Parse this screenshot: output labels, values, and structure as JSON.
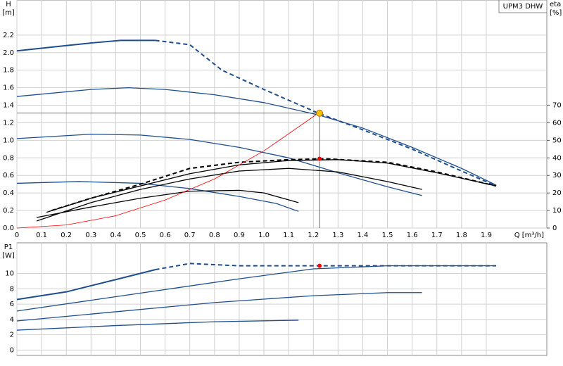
{
  "chart_data": [
    {
      "type": "line",
      "title": "UPM3 DHW",
      "ylabel": "H",
      "ylabel_unit": "[m]",
      "y2label": "eta",
      "y2label_unit": "[%]",
      "xlabel": "Q [m³/h]",
      "xlim": [
        0,
        2.145
      ],
      "ylim": [
        0,
        2.6
      ],
      "y2lim": [
        0,
        130
      ],
      "grid": true,
      "xticks": [
        0,
        0.1,
        0.2,
        0.3,
        0.4,
        0.5,
        0.6,
        0.7,
        0.8,
        0.9,
        {
          "value": 1,
          "label": "1.0"
        },
        1.1,
        1.2,
        1.3,
        1.4,
        1.5,
        1.6,
        1.7,
        1.8,
        1.9
      ],
      "yticks": [
        {
          "value": 0,
          "label": "0.0"
        },
        0.2,
        0.4,
        0.6,
        0.8,
        {
          "value": 1,
          "label": "1.0"
        },
        1.2,
        1.4,
        1.6,
        1.8,
        {
          "value": 2,
          "label": "2.0"
        },
        2.2
      ],
      "y2ticks": [
        0,
        10,
        20,
        30,
        40,
        50,
        60,
        70
      ],
      "series": [
        {
          "color": "#1f4e8c",
          "width": 2,
          "x": [
            0,
            0.1,
            0.2,
            0.3,
            0.42,
            0.56
          ],
          "values": [
            2.02,
            2.05,
            2.08,
            2.11,
            2.14,
            2.14
          ]
        },
        {
          "color": "#1f4e8c",
          "width": 2,
          "dash": true,
          "x": [
            0.56,
            0.7,
            0.83,
            1.0,
            1.22,
            1.4,
            1.6,
            1.8,
            1.94
          ],
          "values": [
            2.14,
            2.09,
            1.8,
            1.58,
            1.31,
            1.12,
            0.9,
            0.65,
            0.48
          ]
        },
        {
          "color": "#1f4e8c",
          "width": 1.3,
          "x": [
            0,
            0.3,
            0.45,
            0.6,
            0.8,
            1.0,
            1.22,
            1.4,
            1.6,
            1.8,
            1.94
          ],
          "values": [
            1.5,
            1.58,
            1.6,
            1.58,
            1.52,
            1.43,
            1.29,
            1.14,
            0.92,
            0.68,
            0.49
          ]
        },
        {
          "color": "#1f4e8c",
          "width": 1.3,
          "x": [
            0,
            0.3,
            0.5,
            0.7,
            0.9,
            1.1,
            1.3,
            1.5,
            1.64
          ],
          "values": [
            1.02,
            1.07,
            1.06,
            1.01,
            0.92,
            0.8,
            0.63,
            0.47,
            0.37
          ]
        },
        {
          "color": "#1f4e8c",
          "width": 1.3,
          "x": [
            0,
            0.25,
            0.5,
            0.7,
            0.9,
            1.05,
            1.14
          ],
          "values": [
            0.51,
            0.53,
            0.51,
            0.45,
            0.36,
            0.28,
            0.19
          ]
        },
        {
          "color": "#000000",
          "width": 2,
          "dash": true,
          "axis": "y2",
          "x": [
            0.14,
            0.3,
            0.5,
            0.7,
            0.9,
            1.1,
            1.25,
            1.5,
            1.7,
            1.94
          ],
          "values": [
            10,
            17,
            25,
            34,
            37.5,
            39,
            39.5,
            37.5,
            32,
            24
          ]
        },
        {
          "color": "#000000",
          "width": 1.3,
          "axis": "y2",
          "x": [
            0.12,
            0.3,
            0.5,
            0.7,
            0.9,
            1.1,
            1.3,
            1.5,
            1.7,
            1.94
          ],
          "values": [
            9,
            17,
            24,
            31,
            36,
            38.5,
            39,
            37,
            31.5,
            24
          ]
        },
        {
          "color": "#000000",
          "width": 1.3,
          "axis": "y2",
          "x": [
            0.08,
            0.3,
            0.5,
            0.7,
            0.9,
            1.1,
            1.3,
            1.5,
            1.64
          ],
          "values": [
            4,
            14.5,
            22,
            28,
            32.5,
            34,
            32,
            26.5,
            22
          ]
        },
        {
          "color": "#000000",
          "width": 1.3,
          "axis": "y2",
          "x": [
            0.08,
            0.3,
            0.5,
            0.7,
            0.9,
            1.0,
            1.14
          ],
          "values": [
            6,
            12,
            17,
            21,
            21.5,
            20,
            14.5
          ]
        },
        {
          "color": "#ff0000",
          "width": 0.8,
          "x": [
            0,
            0.2,
            0.4,
            0.6,
            0.8,
            1.0,
            1.22
          ],
          "values": [
            0,
            0.035,
            0.14,
            0.32,
            0.56,
            0.88,
            1.31
          ]
        }
      ],
      "points": [
        {
          "x": 1.225,
          "y": 1.31,
          "color": "#f7c200",
          "guides": true
        },
        {
          "x": 1.225,
          "y": 39.5,
          "axis": "y2",
          "color": "#ff0000"
        }
      ]
    },
    {
      "type": "line",
      "ylabel": "P1",
      "ylabel_unit": "[W]",
      "xlim": [
        0,
        2.145
      ],
      "ylim": [
        -0.7,
        14
      ],
      "grid": true,
      "xtick_labels": false,
      "xticks": [
        0,
        0.1,
        0.2,
        0.3,
        0.4,
        0.5,
        0.6,
        0.7,
        0.8,
        0.9,
        1,
        1.1,
        1.2,
        1.3,
        1.4,
        1.5,
        1.6,
        1.7,
        1.8,
        1.9
      ],
      "yticks": [
        0,
        2,
        4,
        6,
        8,
        10
      ],
      "series": [
        {
          "color": "#1f4e8c",
          "width": 2,
          "x": [
            0,
            0.2,
            0.4,
            0.56
          ],
          "values": [
            6.6,
            7.6,
            9.2,
            10.5
          ]
        },
        {
          "color": "#1f4e8c",
          "width": 2,
          "dash": true,
          "x": [
            0.56,
            0.7,
            0.9,
            1.22,
            1.5,
            1.94
          ],
          "values": [
            10.5,
            11.3,
            11.0,
            11.0,
            11.0,
            11.0
          ]
        },
        {
          "color": "#1f4e8c",
          "width": 1.3,
          "x": [
            0,
            0.3,
            0.6,
            0.9,
            1.2,
            1.5,
            1.94
          ],
          "values": [
            5.1,
            6.5,
            7.9,
            9.3,
            10.6,
            11.0,
            11.0
          ]
        },
        {
          "color": "#1f4e8c",
          "width": 1.3,
          "x": [
            0,
            0.4,
            0.8,
            1.2,
            1.5,
            1.64
          ],
          "values": [
            3.8,
            5.0,
            6.2,
            7.1,
            7.5,
            7.5
          ]
        },
        {
          "color": "#1f4e8c",
          "width": 1.3,
          "x": [
            0,
            0.4,
            0.8,
            1.14
          ],
          "values": [
            2.6,
            3.2,
            3.7,
            3.9
          ]
        }
      ],
      "points": [
        {
          "x": 1.225,
          "y": 11.0,
          "color": "#ff0000"
        }
      ]
    }
  ]
}
